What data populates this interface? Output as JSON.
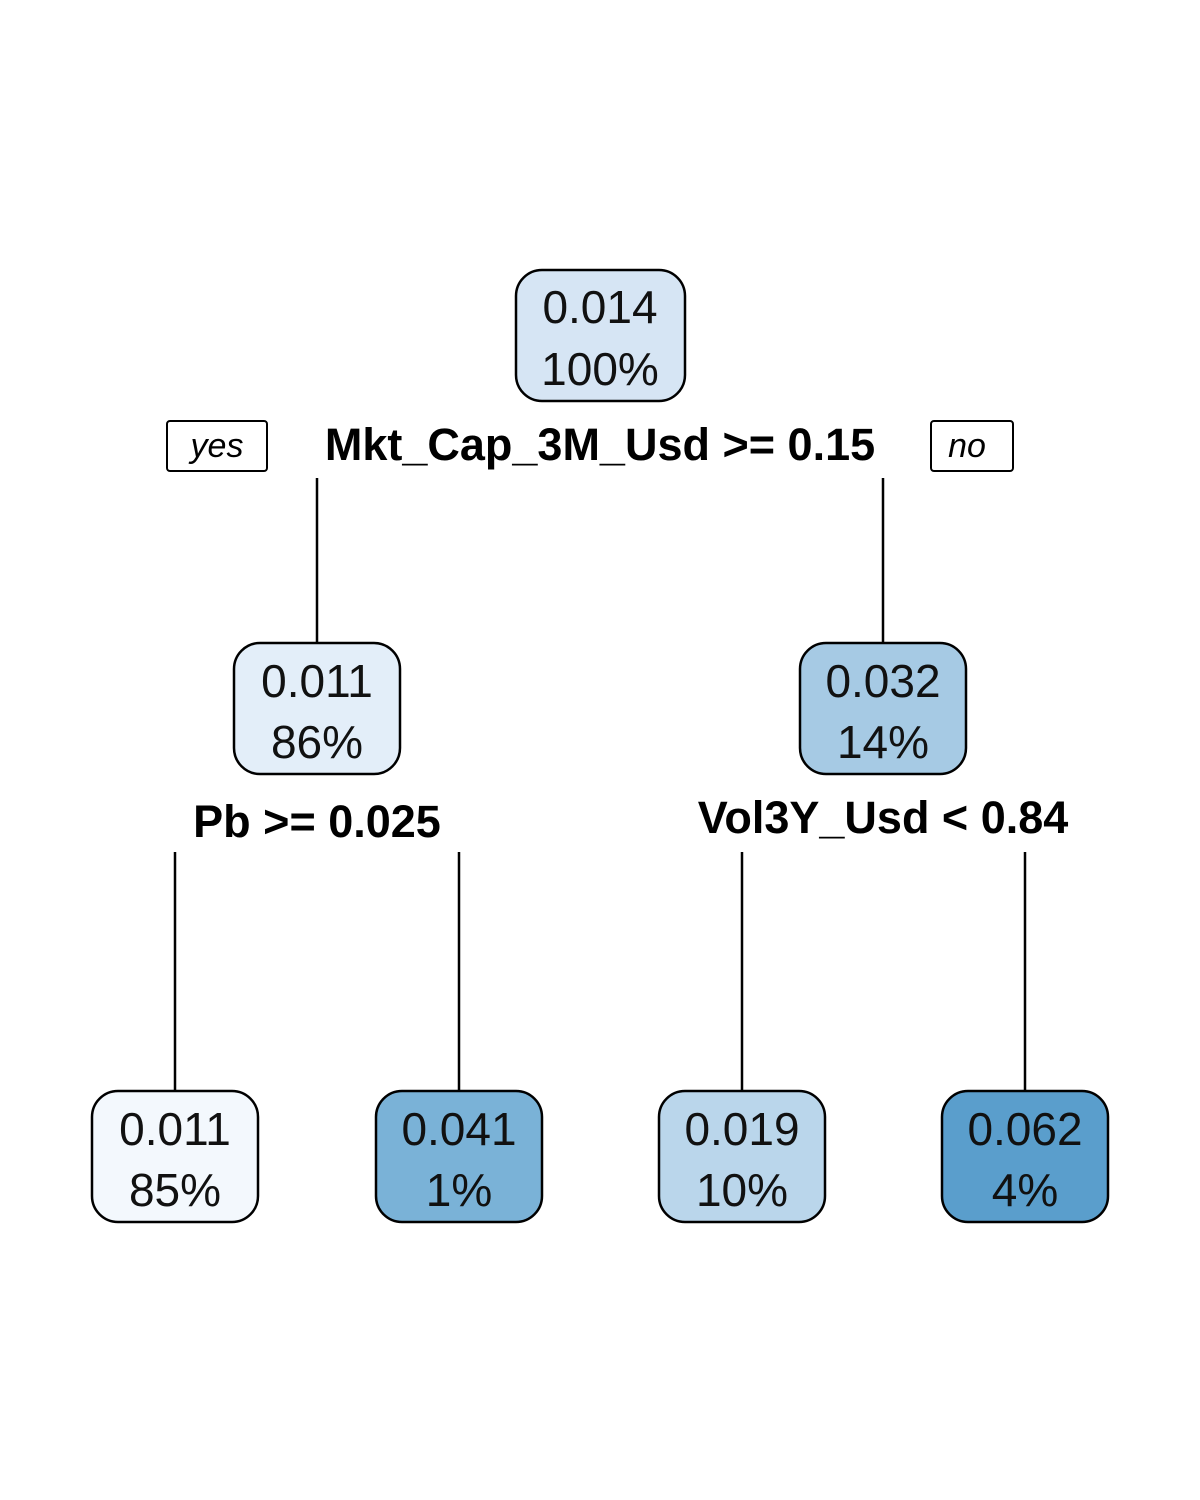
{
  "tree": {
    "nodes": [
      {
        "id": "root",
        "value": "0.014",
        "percent": "100%",
        "fill": "#D6E5F4"
      },
      {
        "id": "left",
        "value": "0.011",
        "percent": "86%",
        "fill": "#E3EEF9"
      },
      {
        "id": "right",
        "value": "0.032",
        "percent": "14%",
        "fill": "#A6CAE4"
      },
      {
        "id": "left-left",
        "value": "0.011",
        "percent": "85%",
        "fill": "#F3F8FD"
      },
      {
        "id": "left-right",
        "value": "0.041",
        "percent": "1%",
        "fill": "#7AB2D7"
      },
      {
        "id": "right-left",
        "value": "0.019",
        "percent": "10%",
        "fill": "#BAD6EB"
      },
      {
        "id": "right-right",
        "value": "0.062",
        "percent": "4%",
        "fill": "#5A9ECC"
      }
    ],
    "splits": {
      "root": "Mkt_Cap_3M_Usd >= 0.15",
      "left": "Pb >= 0.025",
      "right": "Vol3Y_Usd < 0.84"
    },
    "branch_labels": {
      "yes": "yes",
      "no": "no"
    }
  }
}
